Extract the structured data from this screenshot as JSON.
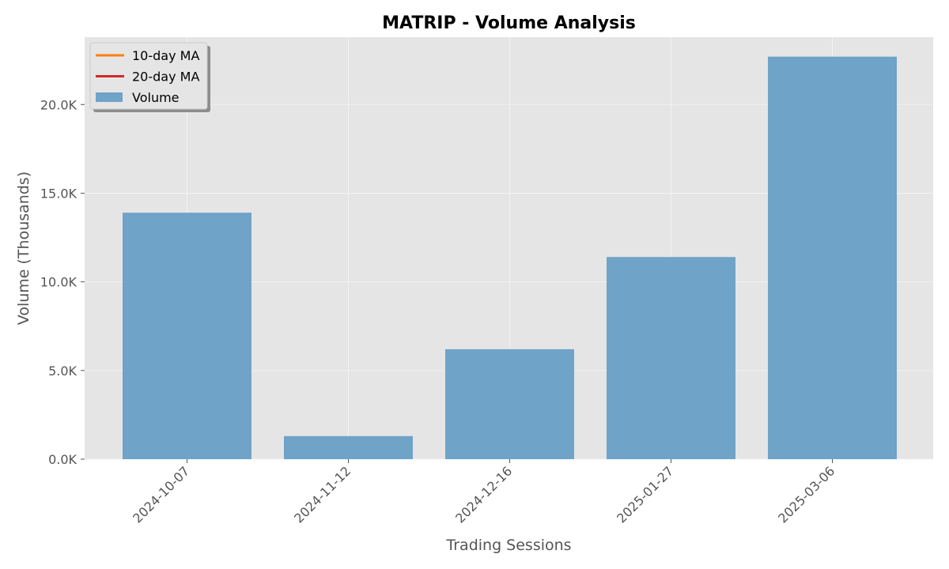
{
  "chart_data": {
    "type": "bar",
    "title": "MATRIP - Volume Analysis",
    "xlabel": "Trading Sessions",
    "ylabel": "Volume (Thousands)",
    "categories": [
      "2024-10-07",
      "2024-11-12",
      "2024-12-16",
      "2025-01-27",
      "2025-03-06"
    ],
    "series": [
      {
        "name": "Volume",
        "values": [
          13.9,
          1.3,
          6.2,
          11.4,
          22.7
        ],
        "color": "#6fa3c8"
      }
    ],
    "ylim": [
      0,
      23.8
    ],
    "y_ticks": [
      0,
      5,
      10,
      15,
      20
    ],
    "y_tick_labels": [
      "0.0K",
      "5.0K",
      "10.0K",
      "15.0K",
      "20.0K"
    ],
    "grid": true,
    "legend": {
      "placement": "top-left",
      "entries": [
        {
          "label": "10-day MA",
          "kind": "line",
          "color": "#ff7f0e"
        },
        {
          "label": "20-day MA",
          "kind": "line",
          "color": "#d62728"
        },
        {
          "label": "Volume",
          "kind": "patch",
          "color": "#6fa3c8"
        }
      ]
    },
    "colors": {
      "plot_background": "#e5e5e5",
      "grid": "#f2f2f2",
      "axis_text": "#555555"
    }
  }
}
